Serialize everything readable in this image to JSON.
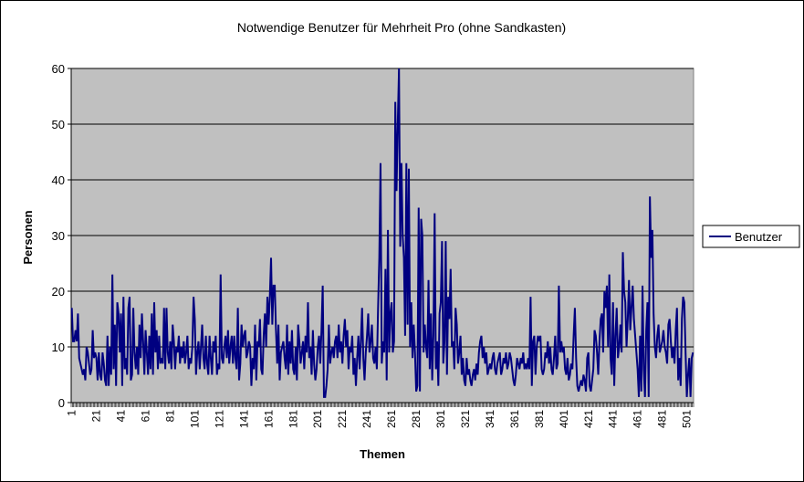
{
  "chart_data": {
    "type": "line",
    "title": "Notwendige Benutzer für Mehrheit Pro (ohne Sandkasten)",
    "xlabel": "Themen",
    "ylabel": "Personen",
    "ylim": [
      0,
      60
    ],
    "yticks": [
      0,
      10,
      20,
      30,
      40,
      50,
      60
    ],
    "xtick_labels": [
      "1",
      "21",
      "41",
      "61",
      "81",
      "101",
      "121",
      "141",
      "161",
      "181",
      "201",
      "221",
      "241",
      "261",
      "281",
      "301",
      "321",
      "341",
      "361",
      "381",
      "401",
      "421",
      "441",
      "461",
      "481",
      "501"
    ],
    "grid": "horizontal major",
    "legend": "right",
    "plot_background": "#c0c0c0",
    "series": [
      {
        "name": "Benutzer",
        "color": "#000080",
        "values": [
          17,
          11,
          11,
          13,
          11,
          16,
          8,
          7,
          6,
          5,
          6,
          4,
          10,
          9,
          7,
          5,
          6,
          13,
          8,
          9,
          8,
          4,
          9,
          5,
          4,
          9,
          7,
          4,
          3,
          12,
          3,
          10,
          5,
          23,
          6,
          14,
          3,
          18,
          16,
          9,
          16,
          3,
          19,
          6,
          8,
          5,
          17,
          19,
          4,
          5,
          17,
          9,
          6,
          10,
          5,
          14,
          8,
          16,
          11,
          5,
          13,
          9,
          5,
          12,
          6,
          16,
          5,
          18,
          9,
          13,
          6,
          12,
          7,
          8,
          7,
          17,
          6,
          17,
          9,
          7,
          11,
          6,
          14,
          11,
          6,
          10,
          9,
          12,
          7,
          10,
          8,
          11,
          7,
          9,
          12,
          6,
          8,
          7,
          10,
          19,
          15,
          5,
          9,
          11,
          6,
          10,
          14,
          8,
          6,
          12,
          7,
          5,
          12,
          8,
          5,
          11,
          9,
          12,
          5,
          7,
          6,
          23,
          8,
          7,
          10,
          12,
          8,
          13,
          7,
          10,
          12,
          7,
          12,
          8,
          6,
          17,
          4,
          7,
          14,
          10,
          12,
          13,
          8,
          9,
          11,
          10,
          3,
          8,
          6,
          14,
          4,
          11,
          10,
          15,
          6,
          5,
          12,
          16,
          10,
          19,
          14,
          19,
          26,
          14,
          21,
          21,
          13,
          7,
          14,
          4,
          9,
          10,
          11,
          8,
          6,
          14,
          5,
          11,
          7,
          13,
          6,
          5,
          10,
          4,
          14,
          11,
          7,
          9,
          11,
          6,
          12,
          9,
          18,
          8,
          10,
          5,
          13,
          7,
          4,
          6,
          10,
          12,
          7,
          13,
          21,
          1,
          1,
          3,
          6,
          14,
          7,
          9,
          10,
          8,
          11,
          12,
          8,
          14,
          9,
          11,
          7,
          12,
          15,
          10,
          13,
          6,
          10,
          9,
          12,
          5,
          8,
          3,
          8,
          12,
          6,
          11,
          17,
          8,
          4,
          9,
          12,
          16,
          9,
          11,
          14,
          8,
          7,
          10,
          6,
          17,
          26,
          43,
          7,
          11,
          9,
          24,
          4,
          31,
          9,
          16,
          18,
          9,
          11,
          54,
          38,
          50,
          60,
          28,
          43,
          30,
          26,
          12,
          43,
          14,
          42,
          10,
          18,
          8,
          14,
          9,
          2,
          3,
          35,
          2,
          33,
          30,
          9,
          14,
          10,
          8,
          22,
          6,
          16,
          4,
          12,
          34,
          6,
          11,
          3,
          16,
          18,
          29,
          7,
          11,
          29,
          5,
          19,
          15,
          24,
          10,
          11,
          6,
          17,
          14,
          7,
          9,
          12,
          5,
          8,
          4,
          3,
          8,
          5,
          6,
          4,
          3,
          5,
          6,
          4,
          7,
          5,
          9,
          11,
          12,
          8,
          10,
          7,
          9,
          5,
          6,
          7,
          6,
          8,
          9,
          6,
          5,
          7,
          8,
          9,
          5,
          6,
          8,
          7,
          9,
          6,
          7,
          9,
          8,
          6,
          4,
          3,
          5,
          8,
          7,
          6,
          8,
          7,
          9,
          6,
          7,
          6,
          8,
          6,
          19,
          3,
          11,
          12,
          5,
          10,
          12,
          11,
          12,
          6,
          5,
          6,
          9,
          8,
          11,
          7,
          10,
          6,
          5,
          8,
          12,
          6,
          7,
          21,
          9,
          11,
          9,
          10,
          6,
          5,
          8,
          4,
          5,
          7,
          6,
          12,
          17,
          8,
          3,
          2,
          3,
          4,
          3,
          5,
          4,
          2,
          8,
          9,
          3,
          2,
          4,
          6,
          13,
          12,
          9,
          5,
          11,
          15,
          16,
          9,
          20,
          17,
          21,
          10,
          23,
          8,
          5,
          18,
          3,
          12,
          17,
          8,
          10,
          14,
          9,
          27,
          20,
          18,
          10,
          15,
          22,
          13,
          17,
          21,
          15,
          12,
          9,
          6,
          1,
          12,
          2,
          21,
          6,
          1,
          13,
          18,
          1,
          37,
          26,
          31,
          16,
          10,
          8,
          12,
          14,
          9,
          10,
          11,
          13,
          10,
          9,
          7,
          14,
          15,
          11,
          8,
          10,
          7,
          13,
          17,
          4,
          8,
          3,
          15,
          19,
          18,
          9,
          1,
          5,
          8,
          1,
          8,
          9
        ]
      }
    ]
  }
}
